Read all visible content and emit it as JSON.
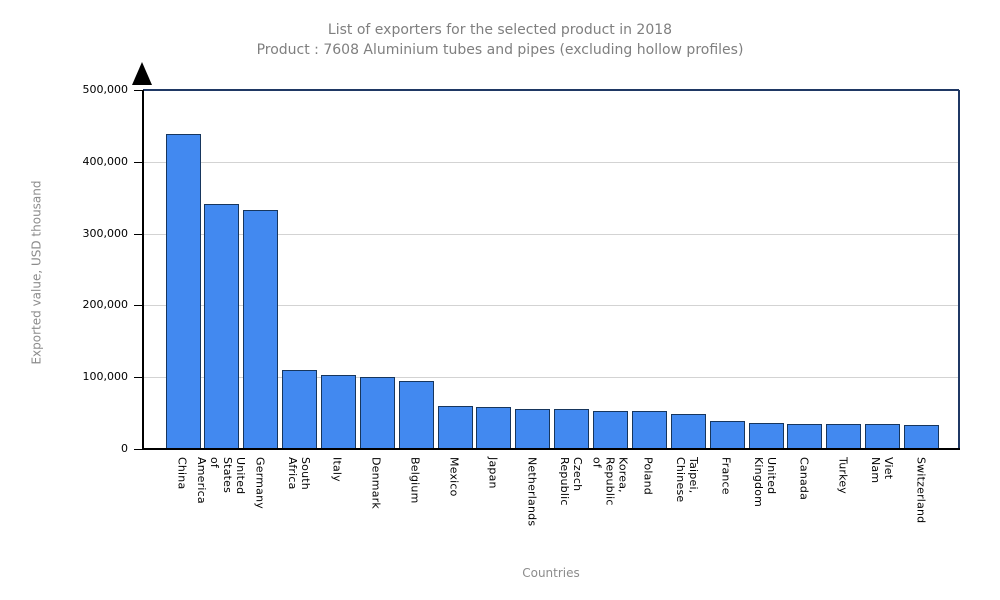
{
  "chart_data": {
    "type": "bar",
    "title": "List of exporters for the selected product in 2018",
    "subtitle": "Product : 7608 Aluminium tubes and pipes (excluding hollow profiles)",
    "xlabel": "Countries",
    "ylabel": "Exported value, USD thousand",
    "ylim": [
      0,
      500000
    ],
    "yticks": [
      0,
      100000,
      200000,
      300000,
      400000,
      500000
    ],
    "ytick_labels": [
      "0",
      "100,000",
      "200,000",
      "300,000",
      "400,000",
      "500,000"
    ],
    "grid": true,
    "legend": false,
    "categories": [
      "China",
      "United States of America",
      "Germany",
      "South Africa",
      "Italy",
      "Denmark",
      "Belgium",
      "Mexico",
      "Japan",
      "Netherlands",
      "Czech Republic",
      "Korea, Republic of",
      "Poland",
      "Taipei, Chinese",
      "France",
      "United Kingdom",
      "Canada",
      "Turkey",
      "Viet Nam",
      "Switzerland"
    ],
    "category_display_labels": [
      "China",
      "United States\nof America",
      "Germany",
      "South Africa",
      "Italy",
      "Denmark",
      "Belgium",
      "Mexico",
      "Japan",
      "Netherlands",
      "Czech Republic",
      "Korea, Republic of",
      "Poland",
      "Taipei, Chinese",
      "France",
      "United Kingdom",
      "Canada",
      "Turkey",
      "Viet Nam",
      "Switzerland"
    ],
    "values": [
      437000,
      340000,
      331000,
      108000,
      101500,
      98500,
      94000,
      58000,
      56500,
      55000,
      54000,
      52000,
      51800,
      47000,
      37500,
      34500,
      33500,
      33300,
      33000,
      32000
    ],
    "colors": {
      "bar_fill": "#4289F0",
      "bar_border": "#17365D",
      "plot_border": "#1F3864",
      "gridline": "#D3D3D3",
      "axis": "#000000",
      "title_text": "#7F7F7F",
      "axis_title_text": "#8C8C8C",
      "tick_text": "#000000",
      "background": "#FFFFFF"
    }
  }
}
